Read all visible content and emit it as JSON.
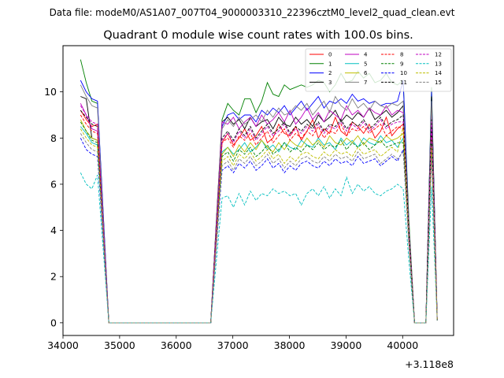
{
  "figure": {
    "suptitle": "Data file: modeM0/AS1A07_007T04_9000003310_22396cztM0_level2_quad_clean.evt"
  },
  "chart_data": {
    "type": "line",
    "title": "Quadrant 0 module wise count rates with 100.0s bins.",
    "xlabel": "",
    "ylabel": "",
    "x_offset_text": "+3.118e8",
    "xlim": [
      34000,
      40900
    ],
    "ylim": [
      -0.55,
      12
    ],
    "xticks": [
      34000,
      35000,
      36000,
      37000,
      38000,
      39000,
      40000
    ],
    "yticks": [
      0,
      2,
      4,
      6,
      8,
      10
    ],
    "grid": false,
    "legend": {
      "location": "upper right",
      "columns": 4
    },
    "x": [
      34310,
      34410,
      34510,
      34610,
      34710,
      34810,
      34910,
      35010,
      35110,
      35210,
      35310,
      35410,
      35510,
      35610,
      35710,
      35810,
      35910,
      36010,
      36110,
      36210,
      36310,
      36410,
      36510,
      36610,
      36710,
      36810,
      36910,
      37010,
      37110,
      37210,
      37310,
      37410,
      37510,
      37610,
      37710,
      37810,
      37910,
      38010,
      38110,
      38210,
      38310,
      38410,
      38510,
      38610,
      38710,
      38810,
      38910,
      39010,
      39110,
      39210,
      39310,
      39410,
      39510,
      39610,
      39710,
      39810,
      39910,
      40010,
      40110,
      40210,
      40310,
      40410,
      40510,
      40610
    ],
    "series": [
      {
        "name": "0",
        "color": "#ff0000",
        "dash": "solid",
        "values": [
          9.2,
          8.8,
          8.5,
          8.6,
          4.3,
          0,
          0,
          0,
          0,
          0,
          0,
          0,
          0,
          0,
          0,
          0,
          0,
          0,
          0,
          0,
          0,
          0,
          0,
          0,
          4.0,
          7.8,
          8.2,
          7.7,
          8.0,
          8.4,
          7.9,
          8.1,
          8.5,
          7.8,
          8.0,
          8.6,
          8.2,
          8.1,
          8.5,
          7.9,
          8.3,
          8.8,
          8.0,
          8.4,
          8.2,
          8.9,
          8.3,
          8.1,
          8.7,
          8.5,
          8.2,
          8.6,
          8.0,
          8.3,
          8.9,
          8.1,
          8.4,
          8.6,
          3.5,
          0,
          0,
          0,
          8.5,
          0.1
        ]
      },
      {
        "name": "1",
        "color": "#008000",
        "dash": "solid",
        "values": [
          11.4,
          10.4,
          9.6,
          9.5,
          4.8,
          0,
          0,
          0,
          0,
          0,
          0,
          0,
          0,
          0,
          0,
          0,
          0,
          0,
          0,
          0,
          0,
          0,
          0,
          0,
          4.5,
          8.8,
          9.5,
          9.2,
          9.0,
          9.7,
          9.7,
          9.1,
          9.6,
          10.4,
          9.9,
          9.8,
          10.3,
          10.1,
          10.2,
          10.3,
          10.2,
          10.3,
          10.5,
          10.4,
          10.0,
          10.3,
          10.8,
          10.4,
          10.5,
          10.9,
          10.6,
          10.8,
          10.4,
          10.5,
          10.8,
          10.4,
          10.3,
          10.5,
          4.5,
          0,
          0,
          0,
          10.2,
          0.1
        ]
      },
      {
        "name": "2",
        "color": "#0000ff",
        "dash": "solid",
        "values": [
          10.5,
          10.0,
          9.7,
          9.6,
          4.8,
          0,
          0,
          0,
          0,
          0,
          0,
          0,
          0,
          0,
          0,
          0,
          0,
          0,
          0,
          0,
          0,
          0,
          0,
          0,
          4.3,
          8.5,
          9.0,
          9.1,
          8.8,
          9.0,
          9.0,
          8.7,
          9.2,
          9.0,
          9.3,
          9.1,
          9.4,
          9.0,
          9.3,
          9.6,
          9.2,
          9.5,
          9.8,
          9.3,
          9.6,
          9.5,
          9.7,
          9.5,
          9.9,
          9.6,
          9.7,
          9.5,
          9.6,
          9.4,
          9.5,
          9.5,
          9.6,
          10.5,
          4.2,
          0,
          0,
          0,
          10.0,
          0.1
        ]
      },
      {
        "name": "3",
        "color": "#000000",
        "dash": "solid",
        "values": [
          9.8,
          9.7,
          8.0,
          7.9,
          4.0,
          0,
          0,
          0,
          0,
          0,
          0,
          0,
          0,
          0,
          0,
          0,
          0,
          0,
          0,
          0,
          0,
          0,
          0,
          0,
          4.4,
          8.7,
          8.9,
          8.6,
          8.8,
          8.4,
          8.9,
          8.5,
          8.7,
          8.8,
          8.4,
          8.9,
          8.6,
          8.5,
          8.9,
          8.6,
          8.8,
          8.5,
          9.0,
          8.7,
          8.9,
          9.2,
          8.7,
          9.0,
          8.8,
          9.1,
          8.9,
          9.3,
          8.8,
          9.0,
          9.2,
          8.9,
          9.1,
          9.4,
          4.0,
          0,
          0,
          0,
          9.8,
          0.1
        ]
      },
      {
        "name": "4",
        "color": "#bf00bf",
        "dash": "solid",
        "values": [
          9.5,
          9.0,
          8.4,
          8.3,
          4.2,
          0,
          0,
          0,
          0,
          0,
          0,
          0,
          0,
          0,
          0,
          0,
          0,
          0,
          0,
          0,
          0,
          0,
          0,
          0,
          4.4,
          8.7,
          8.6,
          8.9,
          8.4,
          8.7,
          8.9,
          8.5,
          9.0,
          8.6,
          8.8,
          9.1,
          8.7,
          9.2,
          8.6,
          8.9,
          9.3,
          8.8,
          9.1,
          8.7,
          9.2,
          9.0,
          8.8,
          9.4,
          9.0,
          9.2,
          8.9,
          9.3,
          9.1,
          9.0,
          9.4,
          9.0,
          9.2,
          9.1,
          4.0,
          0,
          0,
          0,
          9.3,
          0.1
        ]
      },
      {
        "name": "5",
        "color": "#00bfbf",
        "dash": "solid",
        "values": [
          8.5,
          8.2,
          7.8,
          7.7,
          3.9,
          0,
          0,
          0,
          0,
          0,
          0,
          0,
          0,
          0,
          0,
          0,
          0,
          0,
          0,
          0,
          0,
          0,
          0,
          0,
          3.7,
          7.4,
          7.6,
          7.3,
          7.5,
          7.8,
          7.4,
          7.6,
          7.9,
          7.5,
          7.7,
          7.4,
          7.8,
          7.6,
          7.5,
          7.9,
          7.7,
          7.6,
          8.0,
          7.7,
          7.8,
          7.5,
          8.0,
          7.7,
          7.9,
          7.6,
          8.0,
          7.8,
          7.7,
          8.1,
          7.8,
          7.9,
          7.6,
          8.0,
          3.6,
          0,
          0,
          0,
          8.0,
          0.1
        ]
      },
      {
        "name": "6",
        "color": "#bfbf00",
        "dash": "solid",
        "values": [
          8.8,
          8.3,
          8.0,
          7.9,
          4.0,
          0,
          0,
          0,
          0,
          0,
          0,
          0,
          0,
          0,
          0,
          0,
          0,
          0,
          0,
          0,
          0,
          0,
          0,
          0,
          3.6,
          7.3,
          7.6,
          7.2,
          7.7,
          7.4,
          7.8,
          7.5,
          7.9,
          7.6,
          7.4,
          7.8,
          7.5,
          7.9,
          7.7,
          7.6,
          8.0,
          7.7,
          7.9,
          7.6,
          8.1,
          7.8,
          7.7,
          8.0,
          7.8,
          8.1,
          7.7,
          8.0,
          7.9,
          7.8,
          8.1,
          7.9,
          8.0,
          8.2,
          3.7,
          0,
          0,
          0,
          8.2,
          0.1
        ]
      },
      {
        "name": "7",
        "color": "#808080",
        "dash": "solid",
        "values": [
          10.3,
          9.8,
          9.4,
          9.3,
          4.6,
          0,
          0,
          0,
          0,
          0,
          0,
          0,
          0,
          0,
          0,
          0,
          0,
          0,
          0,
          0,
          0,
          0,
          0,
          0,
          4.2,
          8.4,
          8.8,
          8.5,
          8.9,
          8.6,
          8.8,
          9.0,
          8.7,
          9.2,
          8.9,
          9.3,
          9.0,
          9.1,
          9.4,
          9.2,
          9.5,
          9.0,
          9.3,
          9.6,
          9.1,
          9.8,
          9.4,
          9.2,
          9.7,
          9.3,
          9.5,
          9.2,
          9.6,
          9.4,
          9.3,
          9.5,
          9.4,
          9.6,
          4.3,
          0,
          0,
          0,
          9.6,
          0.1
        ]
      },
      {
        "name": "8",
        "color": "#ff0000",
        "dash": "dashed",
        "values": [
          9.0,
          8.6,
          8.3,
          8.2,
          4.1,
          0,
          0,
          0,
          0,
          0,
          0,
          0,
          0,
          0,
          0,
          0,
          0,
          0,
          0,
          0,
          0,
          0,
          0,
          0,
          3.9,
          7.8,
          8.0,
          7.6,
          8.1,
          7.9,
          8.2,
          7.7,
          8.0,
          8.3,
          7.8,
          8.1,
          8.4,
          7.9,
          8.2,
          8.0,
          8.3,
          8.1,
          8.5,
          8.0,
          8.3,
          8.2,
          8.6,
          8.1,
          8.4,
          8.3,
          8.5,
          8.2,
          8.4,
          8.6,
          8.1,
          8.3,
          8.5,
          8.4,
          3.9,
          0,
          0,
          0,
          8.4,
          0.1
        ]
      },
      {
        "name": "9",
        "color": "#008000",
        "dash": "dashed",
        "values": [
          8.7,
          8.3,
          7.9,
          7.8,
          3.9,
          0,
          0,
          0,
          0,
          0,
          0,
          0,
          0,
          0,
          0,
          0,
          0,
          0,
          0,
          0,
          0,
          0,
          0,
          0,
          3.6,
          7.2,
          7.4,
          7.0,
          7.5,
          7.3,
          7.6,
          7.2,
          7.4,
          7.7,
          7.3,
          7.5,
          7.8,
          7.4,
          7.6,
          7.4,
          7.7,
          7.5,
          7.8,
          7.5,
          7.7,
          7.6,
          7.9,
          7.5,
          7.8,
          7.6,
          7.8,
          7.5,
          7.7,
          7.9,
          7.6,
          7.7,
          7.8,
          7.8,
          3.6,
          0,
          0,
          0,
          7.8,
          0.1
        ]
      },
      {
        "name": "10",
        "color": "#0000ff",
        "dash": "dashed",
        "values": [
          8.0,
          7.5,
          7.3,
          7.2,
          3.6,
          0,
          0,
          0,
          0,
          0,
          0,
          0,
          0,
          0,
          0,
          0,
          0,
          0,
          0,
          0,
          0,
          0,
          0,
          0,
          3.3,
          6.6,
          6.8,
          6.5,
          6.9,
          6.7,
          7.0,
          6.6,
          6.8,
          7.1,
          6.7,
          6.9,
          6.5,
          6.8,
          6.6,
          6.9,
          7.0,
          6.8,
          6.7,
          7.0,
          6.8,
          7.1,
          6.9,
          7.0,
          6.8,
          7.2,
          6.9,
          7.0,
          7.1,
          6.8,
          7.0,
          7.2,
          7.0,
          7.5,
          3.4,
          0,
          0,
          0,
          7.4,
          0.1
        ]
      },
      {
        "name": "11",
        "color": "#000000",
        "dash": "dashed",
        "values": [
          9.2,
          8.9,
          8.6,
          8.5,
          4.2,
          0,
          0,
          0,
          0,
          0,
          0,
          0,
          0,
          0,
          0,
          0,
          0,
          0,
          0,
          0,
          0,
          0,
          0,
          0,
          4.0,
          8.0,
          8.3,
          7.9,
          8.4,
          8.1,
          8.5,
          8.0,
          8.3,
          8.6,
          8.2,
          8.4,
          8.7,
          8.2,
          8.5,
          8.3,
          8.6,
          8.4,
          8.7,
          8.3,
          8.6,
          8.5,
          8.8,
          8.4,
          8.7,
          8.5,
          8.8,
          8.4,
          8.6,
          8.9,
          8.5,
          8.7,
          8.8,
          9.0,
          4.0,
          0,
          0,
          0,
          8.8,
          0.1
        ]
      },
      {
        "name": "12",
        "color": "#bf00bf",
        "dash": "dashed",
        "values": [
          9.4,
          9.0,
          8.7,
          8.6,
          4.3,
          0,
          0,
          0,
          0,
          0,
          0,
          0,
          0,
          0,
          0,
          0,
          0,
          0,
          0,
          0,
          0,
          0,
          0,
          0,
          3.9,
          7.9,
          8.2,
          7.8,
          8.3,
          8.0,
          8.4,
          7.9,
          8.2,
          8.5,
          8.1,
          8.3,
          8.6,
          8.1,
          8.4,
          8.2,
          8.5,
          8.3,
          8.6,
          8.2,
          8.5,
          8.4,
          8.7,
          8.3,
          8.6,
          8.4,
          8.7,
          8.3,
          8.5,
          8.8,
          8.4,
          8.6,
          8.7,
          8.7,
          3.9,
          0,
          0,
          0,
          8.7,
          0.1
        ]
      },
      {
        "name": "13",
        "color": "#00bfbf",
        "dash": "dashed",
        "values": [
          6.5,
          6.0,
          5.8,
          6.4,
          3.2,
          0,
          0,
          0,
          0,
          0,
          0,
          0,
          0,
          0,
          0,
          0,
          0,
          0,
          0,
          0,
          0,
          0,
          0,
          0,
          2.7,
          5.4,
          5.5,
          5.0,
          5.6,
          5.1,
          5.7,
          5.3,
          5.6,
          5.5,
          5.8,
          5.6,
          5.7,
          5.5,
          5.6,
          5.1,
          5.6,
          5.8,
          5.5,
          5.9,
          5.4,
          5.8,
          5.5,
          6.3,
          5.6,
          6.0,
          5.7,
          5.9,
          5.6,
          5.5,
          5.7,
          5.8,
          6.0,
          5.8,
          2.7,
          0,
          0,
          0,
          5.9,
          0.1
        ]
      },
      {
        "name": "14",
        "color": "#bfbf00",
        "dash": "dashed",
        "values": [
          8.4,
          8.0,
          7.7,
          7.6,
          3.8,
          0,
          0,
          0,
          0,
          0,
          0,
          0,
          0,
          0,
          0,
          0,
          0,
          0,
          0,
          0,
          0,
          0,
          0,
          0,
          3.5,
          7.0,
          7.2,
          6.8,
          7.3,
          7.1,
          7.4,
          7.0,
          7.2,
          7.5,
          7.1,
          7.3,
          6.9,
          7.2,
          7.0,
          7.3,
          7.4,
          7.2,
          7.1,
          7.4,
          7.2,
          7.5,
          7.3,
          7.4,
          7.2,
          7.6,
          7.3,
          7.4,
          7.5,
          7.2,
          7.4,
          7.6,
          7.4,
          8.5,
          3.5,
          0,
          0,
          0,
          7.6,
          0.1
        ]
      },
      {
        "name": "15",
        "color": "#808080",
        "dash": "dashed",
        "values": [
          8.2,
          7.8,
          7.5,
          7.4,
          3.7,
          0,
          0,
          0,
          0,
          0,
          0,
          0,
          0,
          0,
          0,
          0,
          0,
          0,
          0,
          0,
          0,
          0,
          0,
          0,
          3.4,
          6.8,
          7.0,
          6.6,
          7.1,
          6.9,
          7.2,
          6.8,
          7.0,
          7.3,
          6.9,
          7.1,
          6.7,
          7.0,
          6.8,
          7.1,
          7.2,
          7.0,
          6.9,
          7.2,
          7.0,
          7.3,
          7.1,
          7.2,
          7.0,
          7.4,
          7.1,
          7.2,
          7.3,
          6.9,
          7.1,
          7.3,
          7.1,
          7.4,
          3.4,
          0,
          0,
          0,
          7.2,
          0.1
        ]
      }
    ]
  }
}
